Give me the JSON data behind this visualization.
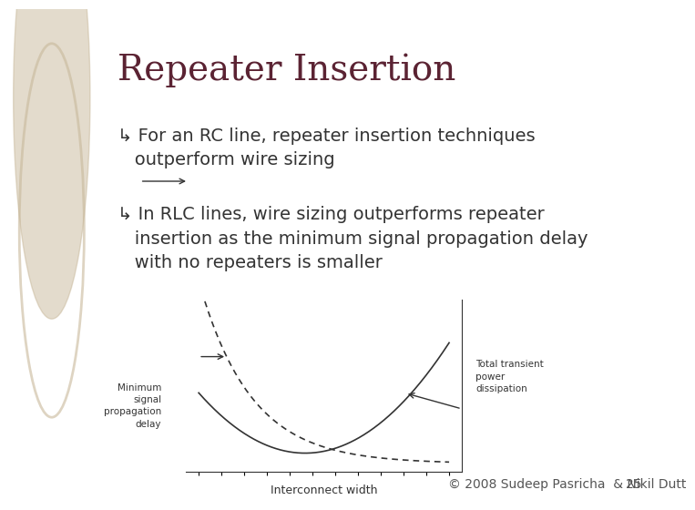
{
  "title": "Repeater Insertion",
  "title_color": "#5B2333",
  "title_fontsize": 28,
  "bullet_symbol": "↳",
  "bullet1": "For an RC line, repeater insertion techniques\n  outperform wire sizing",
  "bullet2": "In RLC lines, wire sizing outperforms repeater\n  insertion as the minimum signal propagation delay\n  with no repeaters is smaller",
  "bullet_fontsize": 14,
  "bullet_color": "#333333",
  "bg_color": "#FFFFFF",
  "left_panel_color": "#D4C5A9",
  "left_circle_color": "#C8B89A",
  "footer_text": "© 2008 Sudeep Pasricha  & Nikil Dutt",
  "page_num": "25",
  "footer_color": "#555555",
  "footer_fontsize": 10,
  "graph_xlabel": "Interconnect width",
  "graph_annotation_left": "Minimum\nsignal\npropagation\ndelay",
  "graph_annotation_right": "Total transient\npower\ndissipation",
  "curve_color": "#333333"
}
